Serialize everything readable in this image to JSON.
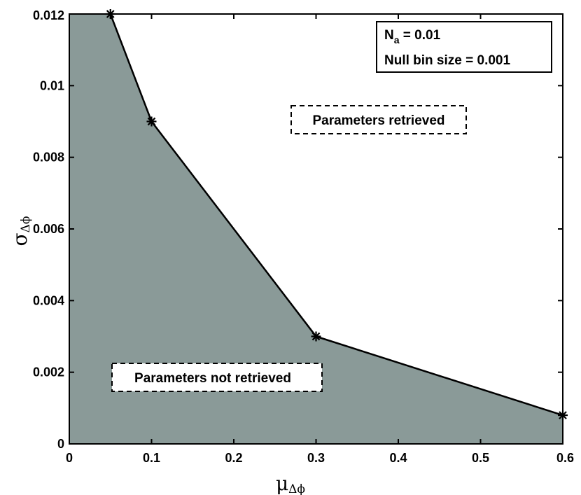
{
  "chart_data": {
    "type": "area",
    "title": "",
    "xlabel": "μ",
    "xlabel_sub": "Δϕ",
    "ylabel": "σ",
    "ylabel_sub": "Δϕ",
    "xlim": [
      0,
      0.6
    ],
    "ylim": [
      0,
      0.012
    ],
    "xticks": [
      0,
      0.1,
      0.2,
      0.3,
      0.4,
      0.5,
      0.6
    ],
    "xtick_labels": [
      "0",
      "0.1",
      "0.2",
      "0.3",
      "0.4",
      "0.5",
      "0.6"
    ],
    "yticks": [
      0,
      0.002,
      0.004,
      0.006,
      0.008,
      0.01,
      0.012
    ],
    "ytick_labels": [
      "0",
      "0.002",
      "0.004",
      "0.006",
      "0.008",
      "0.01",
      "0.012"
    ],
    "grid": false,
    "series": [
      {
        "x": [
          0.05,
          0.1,
          0.3,
          0.6
        ],
        "y": [
          0.012,
          0.009,
          0.003,
          0.0008
        ],
        "marker": "asterisk"
      }
    ],
    "fill_color": "#8a9a98",
    "line_color": "#000000",
    "annotations": {
      "params_box_line1_main": "N",
      "params_box_line1_sub": "a",
      "params_box_line1_rest": " = 0.01",
      "params_box_line2": "Null bin size = 0.001",
      "region_retrieved": "Parameters retrieved",
      "region_not_retrieved": "Parameters not retrieved"
    }
  }
}
